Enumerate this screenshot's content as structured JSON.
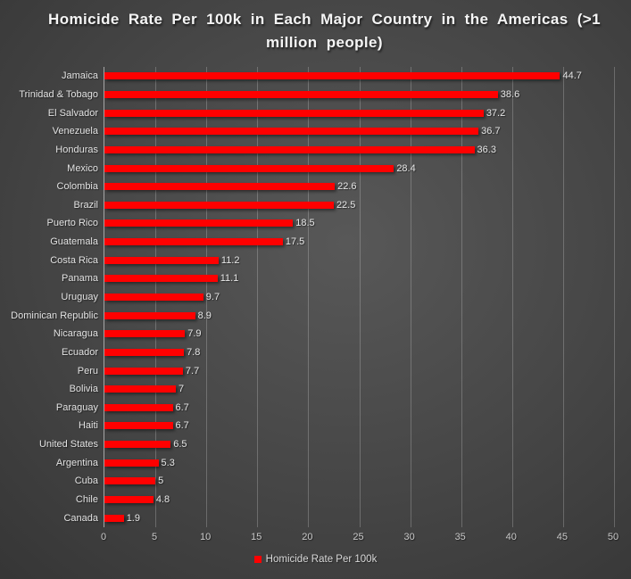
{
  "chart_data": {
    "type": "bar",
    "orientation": "horizontal",
    "title": "Homicide Rate Per 100k in Each Major Country in the Americas (>1 million people)",
    "categories": [
      "Jamaica",
      "Trinidad & Tobago",
      "El Salvador",
      "Venezuela",
      "Honduras",
      "Mexico",
      "Colombia",
      "Brazil",
      "Puerto Rico",
      "Guatemala",
      "Costa Rica",
      "Panama",
      "Uruguay",
      "Dominican Republic",
      "Nicaragua",
      "Ecuador",
      "Peru",
      "Bolivia",
      "Paraguay",
      "Haiti",
      "United States",
      "Argentina",
      "Cuba",
      "Chile",
      "Canada"
    ],
    "values": [
      44.7,
      38.6,
      37.2,
      36.7,
      36.3,
      28.4,
      22.6,
      22.5,
      18.5,
      17.5,
      11.2,
      11.1,
      9.7,
      8.9,
      7.9,
      7.8,
      7.7,
      7,
      6.7,
      6.7,
      6.5,
      5.3,
      5,
      4.8,
      1.9
    ],
    "xlabel": "",
    "ylabel": "",
    "xlim": [
      0,
      50
    ],
    "x_ticks": [
      0,
      5,
      10,
      15,
      20,
      25,
      30,
      35,
      40,
      45,
      50
    ],
    "grid": true,
    "legend_position": "bottom",
    "legend": [
      {
        "label": "Homicide Rate Per 100k",
        "color": "#ff0000"
      }
    ],
    "colors": {
      "bar": "#ff0000",
      "background_center": "#585858",
      "background_edge": "#262626",
      "gridline": "rgba(255,255,255,0.22)",
      "axis_line": "#a6a6a6",
      "label_text": "#e3e3e3",
      "tick_text": "#c9c9c9",
      "title_text": "#f5f5f5"
    }
  }
}
